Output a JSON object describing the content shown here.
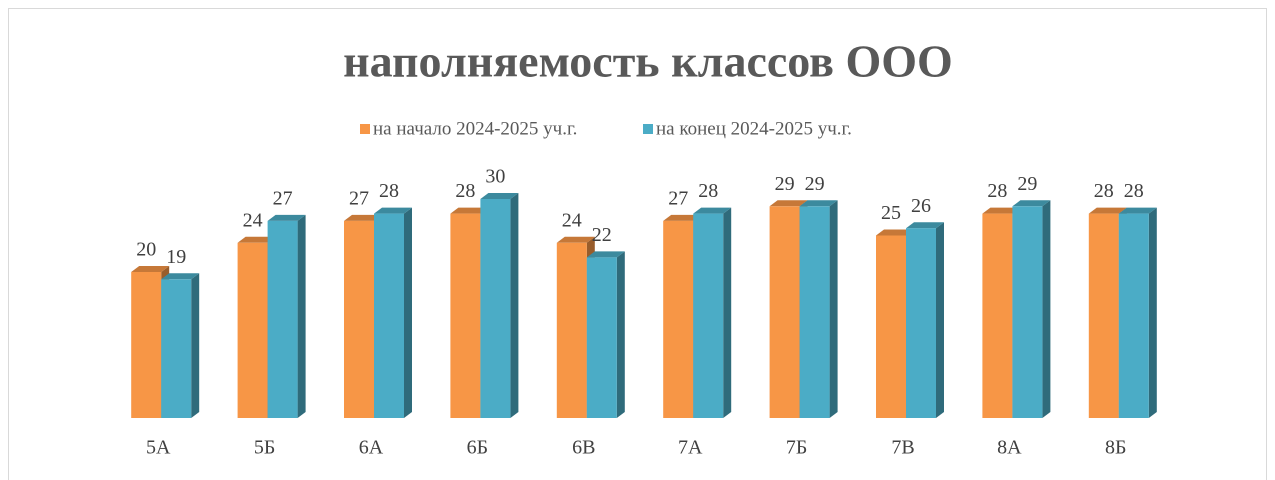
{
  "chart_data": {
    "type": "bar3d",
    "title": "наполняемость классов ООО",
    "categories": [
      "5А",
      "5Б",
      "6А",
      "6Б",
      "6В",
      "7А",
      "7Б",
      "7В",
      "8А",
      "8Б"
    ],
    "series": [
      {
        "name": "на начало 2024-2025 уч.г.",
        "color": "#f79646",
        "values": [
          20,
          24,
          27,
          28,
          24,
          27,
          29,
          25,
          28,
          28
        ]
      },
      {
        "name": "на конец 2024-2025 уч.г.",
        "color": "#4bacc6",
        "values": [
          19,
          27,
          28,
          30,
          22,
          28,
          29,
          26,
          29,
          28
        ]
      }
    ]
  }
}
